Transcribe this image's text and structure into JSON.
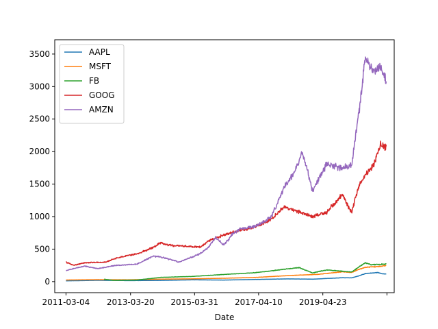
{
  "chart_data": {
    "type": "line",
    "title": "",
    "xlabel": "Date",
    "ylabel": "",
    "x_tick_labels": [
      "2011-03-04",
      "2013-03-20",
      "2015-03-31",
      "2017-04-10",
      "2019-04-23",
      ""
    ],
    "x_ticks": [
      "2011-03-04",
      "2013-03-20",
      "2015-03-31",
      "2017-04-10",
      "2019-04-23",
      "2021-05-04"
    ],
    "xlim": [
      "2010-10-25",
      "2021-07-27"
    ],
    "ylim": [
      -170,
      3720
    ],
    "y_ticks": [
      0,
      500,
      1000,
      1500,
      2000,
      2500,
      3000,
      3500
    ],
    "grid": false,
    "legend_position": "upper-left",
    "series": [
      {
        "name": "AAPL",
        "color": "#1f77b4",
        "x": [
          "2011-03-04",
          "2012-03-04",
          "2013-03-04",
          "2014-03-04",
          "2015-03-04",
          "2016-03-04",
          "2017-03-04",
          "2018-03-04",
          "2019-01-04",
          "2019-12-04",
          "2020-03-20",
          "2020-06-04",
          "2020-09-01",
          "2021-01-25",
          "2021-03-04",
          "2021-04-26"
        ],
        "y": [
          12,
          20,
          16,
          18,
          28,
          24,
          33,
          42,
          38,
          60,
          58,
          85,
          125,
          140,
          120,
          118
        ]
      },
      {
        "name": "MSFT",
        "color": "#ff7f0e",
        "x": [
          "2011-03-04",
          "2012-03-04",
          "2013-03-04",
          "2014-03-04",
          "2015-03-04",
          "2016-03-04",
          "2017-03-04",
          "2018-03-04",
          "2019-03-04",
          "2019-12-04",
          "2020-03-20",
          "2020-06-04",
          "2020-09-01",
          "2021-01-25",
          "2021-04-26"
        ],
        "y": [
          25,
          30,
          28,
          38,
          43,
          52,
          64,
          92,
          112,
          152,
          140,
          185,
          220,
          232,
          250
        ]
      },
      {
        "name": "FB",
        "color": "#2ca02c",
        "x": [
          "2012-05-18",
          "2012-09-04",
          "2013-06-04",
          "2014-03-04",
          "2015-03-04",
          "2016-03-04",
          "2017-03-04",
          "2018-02-01",
          "2018-07-25",
          "2018-12-24",
          "2019-06-04",
          "2020-03-20",
          "2020-08-25",
          "2020-11-04",
          "2021-04-26"
        ],
        "y": [
          38,
          19,
          25,
          65,
          80,
          110,
          138,
          190,
          215,
          133,
          180,
          148,
          290,
          260,
          270
        ]
      },
      {
        "name": "GOOG",
        "color": "#d62728",
        "x": [
          "2011-03-04",
          "2011-06-04",
          "2011-10-04",
          "2012-06-04",
          "2012-10-04",
          "2013-06-04",
          "2013-12-04",
          "2014-03-04",
          "2014-06-04",
          "2015-03-04",
          "2015-06-04",
          "2015-09-04",
          "2016-03-04",
          "2016-09-04",
          "2017-03-04",
          "2017-09-04",
          "2018-02-01",
          "2018-06-04",
          "2018-12-24",
          "2019-06-04",
          "2019-12-04",
          "2020-03-20",
          "2020-06-04",
          "2020-09-01",
          "2020-12-04",
          "2021-02-15",
          "2021-04-26"
        ],
        "y": [
          300,
          250,
          290,
          300,
          360,
          430,
          520,
          600,
          560,
          540,
          530,
          620,
          720,
          780,
          840,
          960,
          1150,
          1100,
          1000,
          1060,
          1340,
          1060,
          1430,
          1650,
          1800,
          2100,
          2080
        ]
      },
      {
        "name": "AMZN",
        "color": "#9467bd",
        "x": [
          "2011-03-04",
          "2011-06-04",
          "2011-10-04",
          "2012-03-04",
          "2012-10-04",
          "2013-06-04",
          "2013-12-04",
          "2014-03-04",
          "2014-10-04",
          "2015-03-04",
          "2015-06-04",
          "2015-09-04",
          "2015-12-04",
          "2016-03-04",
          "2016-06-04",
          "2016-09-04",
          "2017-03-04",
          "2017-09-04",
          "2018-02-01",
          "2018-06-04",
          "2018-08-31",
          "2018-12-24",
          "2019-06-04",
          "2019-12-04",
          "2020-03-20",
          "2020-06-04",
          "2020-09-01",
          "2020-12-04",
          "2021-02-15",
          "2021-04-26"
        ],
        "y": [
          170,
          200,
          240,
          200,
          250,
          270,
          390,
          380,
          300,
          380,
          430,
          520,
          680,
          560,
          720,
          810,
          850,
          1000,
          1450,
          1700,
          2000,
          1400,
          1800,
          1750,
          1800,
          2500,
          3450,
          3200,
          3300,
          3080
        ]
      }
    ]
  }
}
